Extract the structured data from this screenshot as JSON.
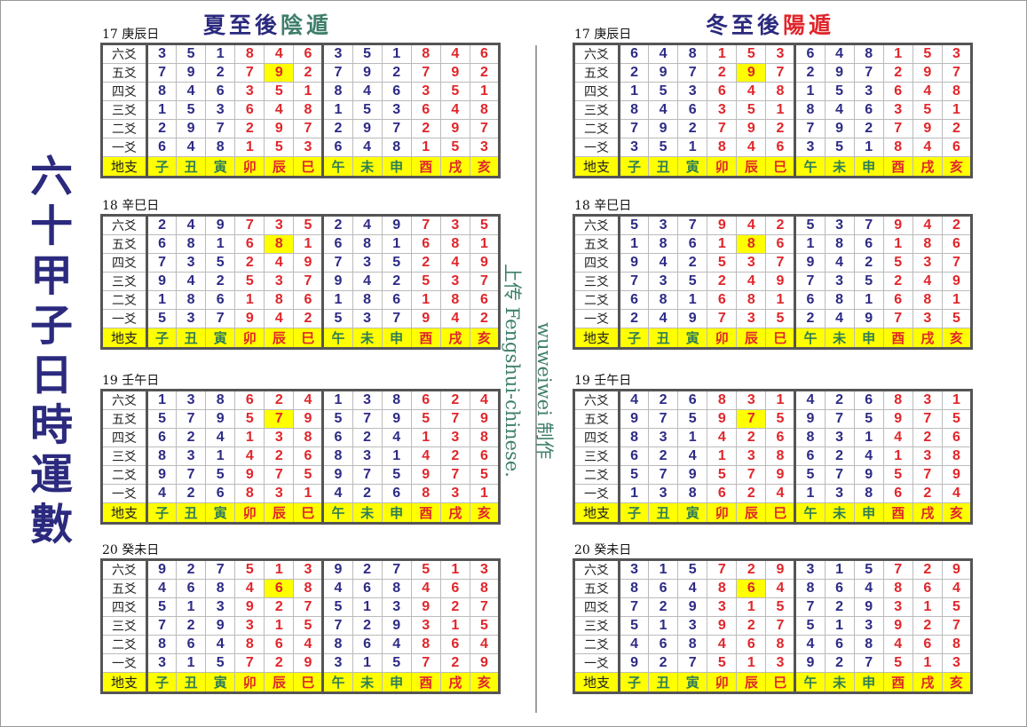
{
  "main_title": [
    "六",
    "十",
    "甲",
    "子",
    "日",
    "時",
    "運",
    "數"
  ],
  "left_header": {
    "part1": "夏至後",
    "part2": "陰遁",
    "color1": "#2b2a7e",
    "color2": "#3f7f6c"
  },
  "right_header": {
    "part1": "冬至後",
    "part2": "陽遁",
    "color1": "#2b2a7e",
    "color2": "#e0262b"
  },
  "credit_upload": "上传 Fengshui-chinese.",
  "credit_author": "wuweiwei 制作",
  "row_labels": [
    "六爻",
    "五爻",
    "四爻",
    "三爻",
    "二爻",
    "一爻"
  ],
  "branch_label": "地支",
  "branches": [
    "子",
    "丑",
    "寅",
    "卯",
    "辰",
    "巳",
    "午",
    "未",
    "申",
    "酉",
    "戌",
    "亥"
  ],
  "colors": {
    "blue_number": "#2d2b85",
    "red_number": "#e0262b",
    "green_branch": "#2f7e55",
    "highlight": "#ffff00"
  },
  "left_tables": [
    {
      "label": "17 庚辰日",
      "highlight": "五爻-辰",
      "rows": [
        [
          3,
          5,
          1,
          8,
          4,
          6,
          3,
          5,
          1,
          8,
          4,
          6
        ],
        [
          7,
          9,
          2,
          7,
          9,
          2,
          7,
          9,
          2,
          7,
          9,
          2
        ],
        [
          8,
          4,
          6,
          3,
          5,
          1,
          8,
          4,
          6,
          3,
          5,
          1
        ],
        [
          1,
          5,
          3,
          6,
          4,
          8,
          1,
          5,
          3,
          6,
          4,
          8
        ],
        [
          2,
          9,
          7,
          2,
          9,
          7,
          2,
          9,
          7,
          2,
          9,
          7
        ],
        [
          6,
          4,
          8,
          1,
          5,
          3,
          6,
          4,
          8,
          1,
          5,
          3
        ]
      ]
    },
    {
      "label": "18 辛巳日",
      "highlight": "五爻-辰",
      "rows": [
        [
          2,
          4,
          9,
          7,
          3,
          5,
          2,
          4,
          9,
          7,
          3,
          5
        ],
        [
          6,
          8,
          1,
          6,
          8,
          1,
          6,
          8,
          1,
          6,
          8,
          1
        ],
        [
          7,
          3,
          5,
          2,
          4,
          9,
          7,
          3,
          5,
          2,
          4,
          9
        ],
        [
          9,
          4,
          2,
          5,
          3,
          7,
          9,
          4,
          2,
          5,
          3,
          7
        ],
        [
          1,
          8,
          6,
          1,
          8,
          6,
          1,
          8,
          6,
          1,
          8,
          6
        ],
        [
          5,
          3,
          7,
          9,
          4,
          2,
          5,
          3,
          7,
          9,
          4,
          2
        ]
      ]
    },
    {
      "label": "19 壬午日",
      "highlight": "五爻-辰",
      "rows": [
        [
          1,
          3,
          8,
          6,
          2,
          4,
          1,
          3,
          8,
          6,
          2,
          4
        ],
        [
          5,
          7,
          9,
          5,
          7,
          9,
          5,
          7,
          9,
          5,
          7,
          9
        ],
        [
          6,
          2,
          4,
          1,
          3,
          8,
          6,
          2,
          4,
          1,
          3,
          8
        ],
        [
          8,
          3,
          1,
          4,
          2,
          6,
          8,
          3,
          1,
          4,
          2,
          6
        ],
        [
          9,
          7,
          5,
          9,
          7,
          5,
          9,
          7,
          5,
          9,
          7,
          5
        ],
        [
          4,
          2,
          6,
          8,
          3,
          1,
          4,
          2,
          6,
          8,
          3,
          1
        ]
      ]
    },
    {
      "label": "20 癸未日",
      "highlight": "五爻-辰",
      "rows": [
        [
          9,
          2,
          7,
          5,
          1,
          3,
          9,
          2,
          7,
          5,
          1,
          3
        ],
        [
          4,
          6,
          8,
          4,
          6,
          8,
          4,
          6,
          8,
          4,
          6,
          8
        ],
        [
          5,
          1,
          3,
          9,
          2,
          7,
          5,
          1,
          3,
          9,
          2,
          7
        ],
        [
          7,
          2,
          9,
          3,
          1,
          5,
          7,
          2,
          9,
          3,
          1,
          5
        ],
        [
          8,
          6,
          4,
          8,
          6,
          4,
          8,
          6,
          4,
          8,
          6,
          4
        ],
        [
          3,
          1,
          5,
          7,
          2,
          9,
          3,
          1,
          5,
          7,
          2,
          9
        ]
      ]
    }
  ],
  "right_tables": [
    {
      "label": "17 庚辰日",
      "highlight": "五爻-辰",
      "rows": [
        [
          6,
          4,
          8,
          1,
          5,
          3,
          6,
          4,
          8,
          1,
          5,
          3
        ],
        [
          2,
          9,
          7,
          2,
          9,
          7,
          2,
          9,
          7,
          2,
          9,
          7
        ],
        [
          1,
          5,
          3,
          6,
          4,
          8,
          1,
          5,
          3,
          6,
          4,
          8
        ],
        [
          8,
          4,
          6,
          3,
          5,
          1,
          8,
          4,
          6,
          3,
          5,
          1
        ],
        [
          7,
          9,
          2,
          7,
          9,
          2,
          7,
          9,
          2,
          7,
          9,
          2
        ],
        [
          3,
          5,
          1,
          8,
          4,
          6,
          3,
          5,
          1,
          8,
          4,
          6
        ]
      ]
    },
    {
      "label": "18 辛巳日",
      "highlight": "五爻-辰",
      "rows": [
        [
          5,
          3,
          7,
          9,
          4,
          2,
          5,
          3,
          7,
          9,
          4,
          2
        ],
        [
          1,
          8,
          6,
          1,
          8,
          6,
          1,
          8,
          6,
          1,
          8,
          6
        ],
        [
          9,
          4,
          2,
          5,
          3,
          7,
          9,
          4,
          2,
          5,
          3,
          7
        ],
        [
          7,
          3,
          5,
          2,
          4,
          9,
          7,
          3,
          5,
          2,
          4,
          9
        ],
        [
          6,
          8,
          1,
          6,
          8,
          1,
          6,
          8,
          1,
          6,
          8,
          1
        ],
        [
          2,
          4,
          9,
          7,
          3,
          5,
          2,
          4,
          9,
          7,
          3,
          5
        ]
      ]
    },
    {
      "label": "19 壬午日",
      "highlight": "五爻-辰",
      "rows": [
        [
          4,
          2,
          6,
          8,
          3,
          1,
          4,
          2,
          6,
          8,
          3,
          1
        ],
        [
          9,
          7,
          5,
          9,
          7,
          5,
          9,
          7,
          5,
          9,
          7,
          5
        ],
        [
          8,
          3,
          1,
          4,
          2,
          6,
          8,
          3,
          1,
          4,
          2,
          6
        ],
        [
          6,
          2,
          4,
          1,
          3,
          8,
          6,
          2,
          4,
          1,
          3,
          8
        ],
        [
          5,
          7,
          9,
          5,
          7,
          9,
          5,
          7,
          9,
          5,
          7,
          9
        ],
        [
          1,
          3,
          8,
          6,
          2,
          4,
          1,
          3,
          8,
          6,
          2,
          4
        ]
      ]
    },
    {
      "label": "20 癸未日",
      "highlight": "五爻-辰",
      "rows": [
        [
          3,
          1,
          5,
          7,
          2,
          9,
          3,
          1,
          5,
          7,
          2,
          9
        ],
        [
          8,
          6,
          4,
          8,
          6,
          4,
          8,
          6,
          4,
          8,
          6,
          4
        ],
        [
          7,
          2,
          9,
          3,
          1,
          5,
          7,
          2,
          9,
          3,
          1,
          5
        ],
        [
          5,
          1,
          3,
          9,
          2,
          7,
          5,
          1,
          3,
          9,
          2,
          7
        ],
        [
          4,
          6,
          8,
          4,
          6,
          8,
          4,
          6,
          8,
          4,
          6,
          8
        ],
        [
          9,
          2,
          7,
          5,
          1,
          3,
          9,
          2,
          7,
          5,
          1,
          3
        ]
      ]
    }
  ]
}
